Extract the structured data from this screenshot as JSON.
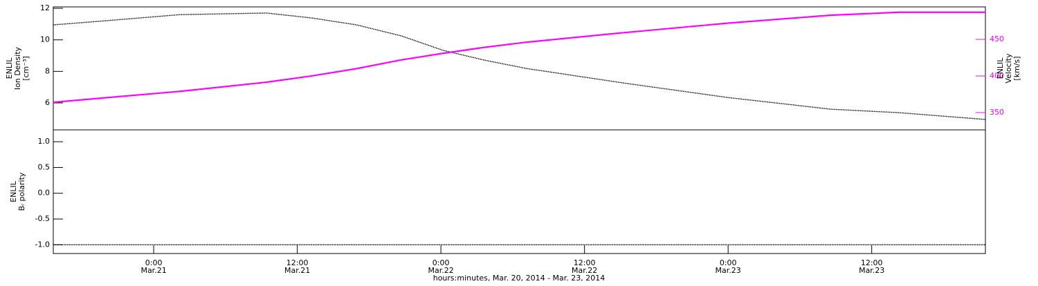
{
  "chart_data": [
    {
      "type": "line",
      "y_label": [
        "ENLIL",
        "Ion Density",
        "[cm⁻³]"
      ],
      "y2_label": [
        "ENLIL",
        "Velocity",
        "[km/s]"
      ],
      "x": [
        -8.39,
        -4.2,
        2.2,
        5.7,
        9.43,
        13.2,
        16.95,
        20.7,
        24.2,
        27.6,
        31.1,
        39.2,
        47.9,
        56.6,
        62.3,
        69.5
      ],
      "xlim": [
        -8.39,
        69.5
      ],
      "ylim": [
        4.29,
        12.09
      ],
      "yticks": [
        6,
        8,
        10,
        12
      ],
      "y2lim": [
        326.4,
        494.3
      ],
      "y2ticks": [
        350,
        400,
        450
      ],
      "y2_color": "#ff00ff",
      "series": [
        {
          "color": "#000000",
          "values": [
            10.95,
            11.2,
            11.6,
            11.65,
            11.7,
            11.39,
            10.95,
            10.25,
            9.33,
            8.72,
            8.19,
            7.27,
            6.35,
            5.6,
            5.38,
            4.95
          ]
        },
        {
          "color": "#ff00ff",
          "axis": "y2",
          "values": [
            364,
            370,
            379,
            385,
            391.5,
            400,
            410,
            422,
            431,
            439,
            446,
            459,
            472,
            483,
            487,
            487
          ]
        }
      ]
    },
    {
      "type": "line",
      "y_label": [
        "ENLIL",
        "Bᵣ polarity"
      ],
      "x_label": "hours:minutes, Mar. 20, 2014 - Mar. 23, 2014",
      "x": [
        -8.39,
        69.5
      ],
      "xlim": [
        -8.39,
        69.5
      ],
      "xticks": [
        {
          "value": 0,
          "label": "0:00",
          "date": "Mar.21"
        },
        {
          "value": 12,
          "label": "12:00",
          "date": "Mar.21"
        },
        {
          "value": 24,
          "label": "0:00",
          "date": "Mar.22"
        },
        {
          "value": 36,
          "label": "12:00",
          "date": "Mar.22"
        },
        {
          "value": 48,
          "label": "0:00",
          "date": "Mar.23"
        },
        {
          "value": 60,
          "label": "12:00",
          "date": "Mar.23"
        }
      ],
      "ylim": [
        -1.17,
        1.23
      ],
      "yticks": [
        {
          "value": -1,
          "label": "-1.0"
        },
        -0.5,
        {
          "value": 0,
          "label": "0.0"
        },
        0.5,
        {
          "value": 1,
          "label": "1.0"
        }
      ],
      "series": [
        {
          "color": "#000000",
          "values": [
            -1,
            -1
          ]
        }
      ]
    }
  ]
}
